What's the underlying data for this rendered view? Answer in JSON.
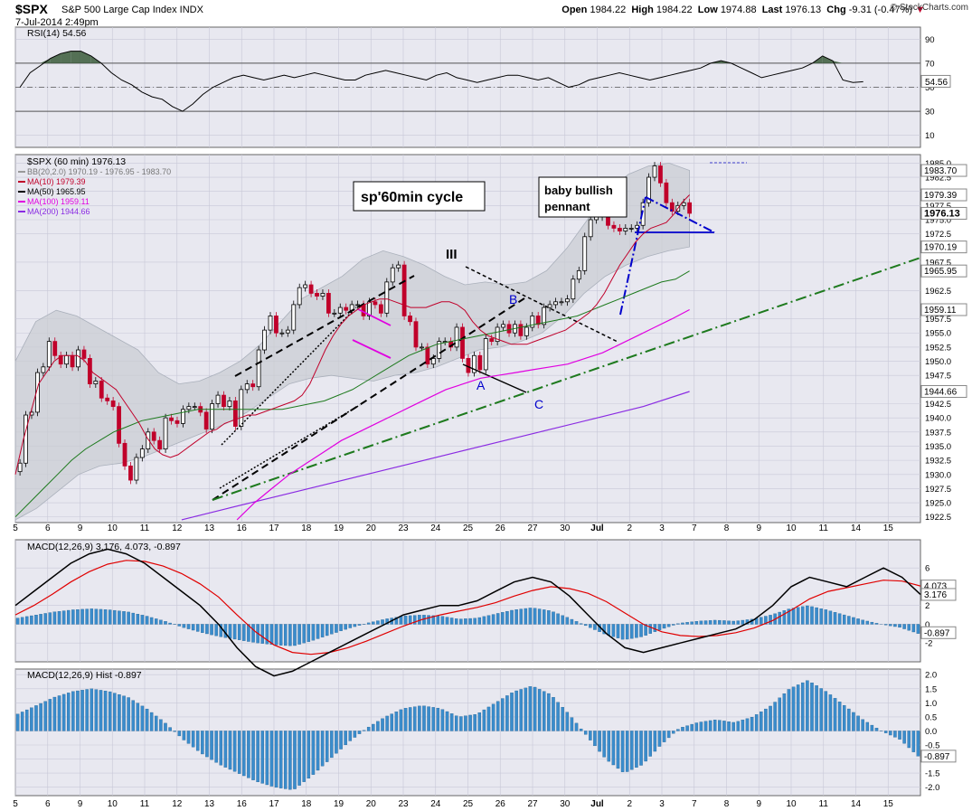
{
  "header": {
    "symbol": "$SPX",
    "name": "S&P 500 Large Cap Index  INDX",
    "datetime": "7-Jul-2014 2:49pm",
    "open_label": "Open",
    "open": "1984.22",
    "high_label": "High",
    "high": "1984.22",
    "low_label": "Low",
    "low": "1974.88",
    "last_label": "Last",
    "last": "1976.13",
    "chg_label": "Chg",
    "chg": "-9.31 (-0.47%)",
    "brand": "© StockCharts.com"
  },
  "colors": {
    "bg": "#ffffff",
    "panel": "#e8e8f0",
    "grid": "#c8c8d8",
    "up": "#000000",
    "down": "#c0002a",
    "ma10": "#c0002a",
    "ma50": "#1e7a1e",
    "ma100": "#e000e0",
    "ma200": "#8a2be2",
    "bb": "#aab0bb",
    "macd": "#000000",
    "signal": "#e00000",
    "hist": "#3a8ccc",
    "rsi": "#000000",
    "rsi_fill": "#3a5a3a",
    "ann_black": "#000000",
    "ann_green": "#1e7a1e",
    "ann_blue": "#0000cc",
    "ann_pink": "#e000e0"
  },
  "x_axis": {
    "labels": [
      {
        "i": 0,
        "t": "5"
      },
      {
        "i": 7,
        "t": "6"
      },
      {
        "i": 14,
        "t": "9"
      },
      {
        "i": 21,
        "t": "10"
      },
      {
        "i": 28,
        "t": "11"
      },
      {
        "i": 35,
        "t": "12"
      },
      {
        "i": 42,
        "t": "13"
      },
      {
        "i": 49,
        "t": "16"
      },
      {
        "i": 56,
        "t": "17"
      },
      {
        "i": 63,
        "t": "18"
      },
      {
        "i": 70,
        "t": "19"
      },
      {
        "i": 77,
        "t": "20"
      },
      {
        "i": 84,
        "t": "23"
      },
      {
        "i": 91,
        "t": "24"
      },
      {
        "i": 98,
        "t": "25"
      },
      {
        "i": 105,
        "t": "26"
      },
      {
        "i": 112,
        "t": "27"
      },
      {
        "i": 119,
        "t": "30"
      },
      {
        "i": 126,
        "t": "Jul"
      },
      {
        "i": 133,
        "t": "2"
      },
      {
        "i": 140,
        "t": "3"
      },
      {
        "i": 147,
        "t": "7"
      },
      {
        "i": 154,
        "t": "8"
      },
      {
        "i": 161,
        "t": "9"
      },
      {
        "i": 168,
        "t": "10"
      },
      {
        "i": 175,
        "t": "11"
      },
      {
        "i": 182,
        "t": "14"
      },
      {
        "i": 189,
        "t": "15"
      }
    ]
  },
  "panels": {
    "rsi": {
      "legend": "RSI(14) 54.56",
      "value_tag": "54.56",
      "ticks": [
        "90",
        "70",
        "50",
        "30",
        "10"
      ],
      "overbought": 70,
      "oversold": 30
    },
    "price": {
      "legend_title": "$SPX (60 min) 1976.13",
      "legend_items": [
        {
          "key": "bb",
          "text": "BB(20,2.0) 1970.19 - 1976.95 - 1983.70"
        },
        {
          "key": "ma10",
          "text": "MA(10) 1979.39"
        },
        {
          "key": "ma50",
          "text": "MA(50) 1965.95"
        },
        {
          "key": "ma100",
          "text": "MA(100) 1959.11"
        },
        {
          "key": "ma200",
          "text": "MA(200) 1944.66"
        }
      ],
      "ticks": [
        "1985.0",
        "1982.5",
        "1980.0",
        "1977.5",
        "1975.0",
        "1972.5",
        "1967.5",
        "1962.5",
        "1957.5",
        "1955.0",
        "1952.5",
        "1950.0",
        "1947.5",
        "1942.5",
        "1940.0",
        "1937.5",
        "1935.0",
        "1932.5",
        "1930.0",
        "1927.5",
        "1925.0",
        "1922.5"
      ],
      "tags": [
        {
          "v": 1983.7,
          "t": "1983.70"
        },
        {
          "v": 1979.39,
          "t": "1979.39"
        },
        {
          "v": 1976.13,
          "t": "1976.13",
          "bold": true
        },
        {
          "v": 1970.19,
          "t": "1970.19"
        },
        {
          "v": 1965.95,
          "t": "1965.95"
        },
        {
          "v": 1959.11,
          "t": "1959.11"
        },
        {
          "v": 1944.66,
          "t": "1944.66"
        }
      ]
    },
    "macd": {
      "legend": "MACD(12,26,9) 3.176, 4.073, -0.897",
      "ticks": [
        "6",
        "2",
        "0",
        "-2"
      ],
      "tags": [
        {
          "v": 4.073,
          "t": "4.073"
        },
        {
          "v": 3.176,
          "t": "3.176"
        },
        {
          "v": -0.897,
          "t": "-0.897"
        }
      ]
    },
    "hist": {
      "legend": "MACD(12,26,9) Hist -0.897",
      "ticks": [
        "2.0",
        "1.5",
        "1.0",
        "0.5",
        "0.0",
        "-0.5",
        "-1.0",
        "-1.5",
        "-2.0"
      ],
      "tags": [
        {
          "v": -0.897,
          "t": "-0.897"
        }
      ]
    }
  },
  "annotations": {
    "box_title": "sp'60min cycle",
    "box_pennant_line1": "baby bullish",
    "box_pennant_line2": "pennant",
    "wave_III": "III",
    "wave_A": "A",
    "wave_B": "B",
    "wave_C": "C"
  },
  "chart_data": {
    "type": "candlestick",
    "symbol": "$SPX",
    "interval": "60 min",
    "ylim": [
      1921.5,
      1986.5
    ],
    "closes": [
      1932.0,
      1940.5,
      1941.0,
      1948.0,
      1949.0,
      1953.5,
      1951.0,
      1949.5,
      1951.0,
      1949.0,
      1952.0,
      1950.5,
      1946.0,
      1946.5,
      1943.5,
      1943.0,
      1942.0,
      1935.5,
      1931.5,
      1929.0,
      1933.0,
      1934.5,
      1937.5,
      1936.0,
      1934.5,
      1940.0,
      1939.5,
      1939.0,
      1941.5,
      1942.0,
      1942.0,
      1941.0,
      1938.0,
      1942.5,
      1944.0,
      1942.0,
      1943.0,
      1938.5,
      1945.0,
      1946.0,
      1945.5,
      1952.0,
      1955.5,
      1958.0,
      1955.0,
      1955.0,
      1955.5,
      1960.0,
      1963.0,
      1963.5,
      1962.0,
      1961.5,
      1962.0,
      1958.5,
      1958.5,
      1959.5,
      1959.0,
      1960.0,
      1960.0,
      1958.0,
      1960.5,
      1960.0,
      1958.5,
      1964.0,
      1966.5,
      1967.0,
      1958.0,
      1957.0,
      1952.5,
      1952.5,
      1949.5,
      1950.5,
      1953.5,
      1953.5,
      1952.5,
      1956.0,
      1950.5,
      1948.0,
      1951.0,
      1948.5,
      1954.0,
      1953.5,
      1956.0,
      1956.5,
      1955.0,
      1956.5,
      1954.5,
      1956.0,
      1958.0,
      1956.5,
      1959.5,
      1960.0,
      1960.5,
      1960.5,
      1961.0,
      1964.5,
      1966.0,
      1972.0,
      1975.0,
      1975.5,
      1976.0,
      1974.0,
      1973.5,
      1973.0,
      1973.5,
      1973.5,
      1974.0,
      1978.0,
      1982.5,
      1984.5,
      1981.5,
      1978.0,
      1976.5,
      1977.5,
      1978.0,
      1976.13
    ],
    "ma10": [
      1930.0,
      1936.0,
      1941.0,
      1946.0,
      1948.0,
      1950.0,
      1951.0,
      1951.0,
      1951.0,
      1950.0,
      1948.0,
      1947.0,
      1946.0,
      1945.0,
      1943.0,
      1941.0,
      1939.0,
      1936.5,
      1934.5,
      1933.5,
      1933.0,
      1933.5,
      1934.5,
      1935.5,
      1936.5,
      1937.5,
      1938.0,
      1939.0,
      1939.5,
      1940.0,
      1940.5,
      1940.5,
      1941.0,
      1941.5,
      1942.0,
      1942.5,
      1943.0,
      1944.0,
      1946.0,
      1949.0,
      1952.0,
      1954.5,
      1956.5,
      1958.0,
      1959.0,
      1960.0,
      1960.5,
      1961.0,
      1961.0,
      1960.5,
      1960.0,
      1959.5,
      1959.5,
      1959.5,
      1960.0,
      1960.5,
      1960.5,
      1960.0,
      1959.0,
      1957.0,
      1955.5,
      1954.5,
      1954.0,
      1953.5,
      1953.0,
      1953.0,
      1953.0,
      1953.5,
      1954.0,
      1954.5,
      1955.0,
      1955.5,
      1956.5,
      1957.5,
      1958.5,
      1960.0,
      1962.0,
      1964.5,
      1967.0,
      1969.0,
      1971.0,
      1972.5,
      1973.5,
      1974.0,
      1974.5,
      1976.0,
      1978.0,
      1979.39
    ],
    "ma50": [
      1922.5,
      1925.0,
      1927.5,
      1930.0,
      1932.5,
      1934.5,
      1936.0,
      1937.5,
      1938.5,
      1939.5,
      1940.0,
      1940.5,
      1941.0,
      1941.5,
      1941.5,
      1941.5,
      1941.5,
      1941.5,
      1941.5,
      1941.5,
      1942.0,
      1942.5,
      1943.0,
      1944.0,
      1945.0,
      1946.5,
      1948.0,
      1949.5,
      1951.0,
      1952.0,
      1953.0,
      1953.5,
      1954.0,
      1954.5,
      1955.0,
      1955.5,
      1956.0,
      1956.5,
      1957.0,
      1957.5,
      1958.0,
      1959.0,
      1960.0,
      1961.0,
      1962.0,
      1963.0,
      1964.0,
      1964.5,
      1965.95
    ],
    "ma100": [
      1922.0,
      1925.0,
      1927.5,
      1930.0,
      1932.0,
      1934.0,
      1936.0,
      1937.5,
      1939.0,
      1940.5,
      1942.0,
      1943.5,
      1945.0,
      1946.0,
      1947.0,
      1947.5,
      1948.0,
      1948.5,
      1949.0,
      1949.5,
      1950.5,
      1951.5,
      1953.0,
      1954.5,
      1956.0,
      1957.5,
      1959.11
    ],
    "ma200": [
      1922.0,
      1924.0,
      1926.0,
      1928.0,
      1930.0,
      1932.0,
      1934.0,
      1936.0,
      1938.0,
      1940.0,
      1942.0,
      1944.66
    ],
    "bb_upper": [
      1950.0,
      1957.0,
      1959.0,
      1958.0,
      1956.0,
      1954.0,
      1952.0,
      1948.0,
      1946.0,
      1946.5,
      1948.0,
      1950.0,
      1953.0,
      1957.0,
      1961.0,
      1963.0,
      1965.0,
      1968.0,
      1969.5,
      1968.5,
      1967.0,
      1965.0,
      1963.5,
      1964.0,
      1963.5,
      1964.0,
      1966.0,
      1970.0,
      1975.0,
      1980.0,
      1983.0,
      1984.5,
      1985.0,
      1983.7
    ],
    "bb_lower": [
      1922.0,
      1924.0,
      1927.0,
      1930.0,
      1931.5,
      1932.0,
      1933.0,
      1934.5,
      1936.0,
      1937.5,
      1939.0,
      1941.0,
      1943.5,
      1946.0,
      1947.0,
      1947.5,
      1947.0,
      1946.5,
      1947.5,
      1948.0,
      1949.0,
      1950.5,
      1952.0,
      1952.5,
      1953.5,
      1955.0,
      1958.0,
      1962.0,
      1965.0,
      1967.0,
      1968.5,
      1969.5,
      1970.19
    ],
    "rsi": [
      50,
      62,
      68,
      74,
      78,
      80,
      80,
      76,
      70,
      62,
      56,
      52,
      46,
      42,
      40,
      34,
      30,
      36,
      44,
      50,
      54,
      58,
      60,
      58,
      56,
      58,
      60,
      58,
      60,
      62,
      60,
      58,
      56,
      56,
      60,
      62,
      64,
      62,
      60,
      58,
      56,
      60,
      62,
      58,
      56,
      54,
      56,
      58,
      60,
      60,
      58,
      56,
      58,
      54,
      50,
      52,
      56,
      58,
      60,
      62,
      60,
      58,
      56,
      58,
      60,
      62,
      64,
      66,
      70,
      72,
      70,
      66,
      62,
      58,
      60,
      62,
      64,
      66,
      70,
      76,
      72,
      56,
      54,
      54.56
    ],
    "rsi_last": 54.56,
    "macd_line": [
      2.0,
      3.5,
      5.0,
      6.5,
      7.5,
      8.0,
      7.5,
      6.5,
      5.0,
      3.5,
      2.0,
      0.0,
      -2.5,
      -4.5,
      -5.5,
      -5.0,
      -4.0,
      -3.0,
      -2.0,
      -1.0,
      0.0,
      1.0,
      1.5,
      2.0,
      2.0,
      2.5,
      3.5,
      4.5,
      5.0,
      4.5,
      3.0,
      1.0,
      -1.0,
      -2.5,
      -3.0,
      -2.5,
      -2.0,
      -1.5,
      -1.0,
      -0.5,
      0.5,
      2.0,
      4.0,
      5.0,
      4.5,
      4.0,
      5.0,
      6.0,
      5.0,
      3.176
    ],
    "signal_line": [
      1.0,
      2.0,
      3.2,
      4.5,
      5.6,
      6.4,
      6.8,
      6.7,
      6.2,
      5.4,
      4.3,
      2.9,
      1.0,
      -0.8,
      -2.2,
      -3.0,
      -3.2,
      -3.0,
      -2.5,
      -1.8,
      -1.0,
      -0.2,
      0.5,
      1.0,
      1.4,
      1.8,
      2.3,
      3.0,
      3.6,
      4.0,
      3.8,
      3.3,
      2.4,
      1.2,
      0.0,
      -0.8,
      -1.2,
      -1.3,
      -1.2,
      -0.9,
      -0.4,
      0.4,
      1.5,
      2.7,
      3.5,
      3.9,
      4.3,
      4.7,
      4.6,
      4.073
    ],
    "hist": [
      0.6,
      0.9,
      1.2,
      1.4,
      1.5,
      1.4,
      1.2,
      0.8,
      0.3,
      -0.3,
      -0.8,
      -1.2,
      -1.5,
      -1.8,
      -2.0,
      -2.1,
      -1.6,
      -1.0,
      -0.4,
      0.1,
      0.5,
      0.8,
      0.9,
      0.8,
      0.5,
      0.6,
      1.0,
      1.4,
      1.6,
      1.3,
      0.6,
      -0.2,
      -1.0,
      -1.5,
      -1.2,
      -0.5,
      0.1,
      0.3,
      0.4,
      0.3,
      0.5,
      0.9,
      1.5,
      1.8,
      1.4,
      0.9,
      0.4,
      0.0,
      -0.3,
      -0.897
    ],
    "hist_last": -0.897
  }
}
